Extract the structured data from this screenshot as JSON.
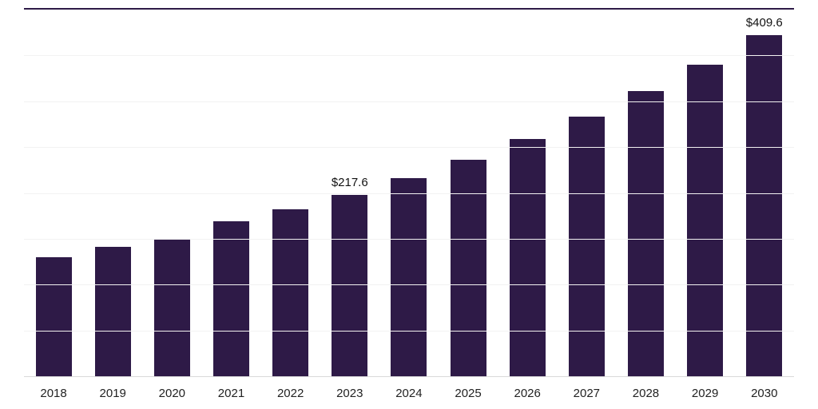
{
  "chart_data": {
    "type": "bar",
    "title": "",
    "xlabel": "",
    "ylabel": "",
    "categories": [
      "2018",
      "2019",
      "2020",
      "2021",
      "2022",
      "2023",
      "2024",
      "2025",
      "2026",
      "2027",
      "2028",
      "2029",
      "2030"
    ],
    "values": [
      143,
      155,
      164,
      186,
      200,
      217.6,
      238,
      260,
      285,
      312,
      342,
      374,
      409.6
    ],
    "data_labels": [
      "",
      "",
      "",
      "",
      "",
      "$217.6",
      "",
      "",
      "",
      "",
      "",
      "",
      "$409.6"
    ],
    "ylim": [
      0,
      440
    ],
    "grid": true,
    "gridline_intervals": 8,
    "legend": "none",
    "bar_color": "#2e1a47",
    "gridline_color": "#f2f2f2",
    "axis_line_color": "#d9d9d9",
    "top_border_color": "#2e1a47",
    "label_text_color": "#111111",
    "tick_text_color": "#222222"
  }
}
